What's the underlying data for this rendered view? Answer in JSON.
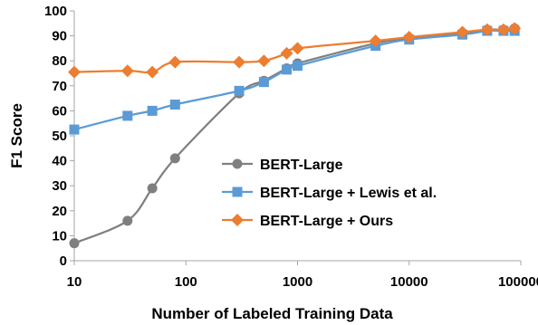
{
  "chart_data": {
    "type": "line",
    "xlabel": "Number of Labeled Training Data",
    "ylabel": "F1 Score",
    "xscale": "log",
    "xlim": [
      10,
      100000
    ],
    "ylim": [
      0,
      100
    ],
    "x_ticks": [
      10,
      100,
      1000,
      10000,
      100000
    ],
    "x_tick_labels": [
      "10",
      "100",
      "1000",
      "10000",
      "100000"
    ],
    "y_ticks": [
      0,
      10,
      20,
      30,
      40,
      50,
      60,
      70,
      80,
      90,
      100
    ],
    "y_tick_labels": [
      "0",
      "10",
      "20",
      "30",
      "40",
      "50",
      "60",
      "70",
      "80",
      "90",
      "100"
    ],
    "grid": false,
    "legend_position": "center-right",
    "series": [
      {
        "name": "BERT-Large",
        "color": "#7f7f7f",
        "marker": "circle",
        "x": [
          10,
          30,
          50,
          80,
          300,
          500,
          800,
          1000,
          5000,
          10000,
          30000,
          50000,
          70000,
          88000
        ],
        "y": [
          7,
          16,
          29,
          41,
          67,
          72,
          77,
          79,
          87,
          89,
          91,
          92.5,
          92.5,
          93
        ]
      },
      {
        "name": "BERT-Large + Lewis et al.",
        "color": "#5b9bd5",
        "marker": "square",
        "x": [
          10,
          30,
          50,
          80,
          300,
          500,
          800,
          1000,
          5000,
          10000,
          30000,
          50000,
          70000,
          88000
        ],
        "y": [
          52.5,
          58,
          60,
          62.5,
          68,
          71.5,
          76.5,
          78,
          86,
          88.5,
          90.5,
          92,
          92,
          92
        ]
      },
      {
        "name": "BERT-Large + Ours",
        "color": "#ed7d31",
        "marker": "diamond",
        "x": [
          10,
          30,
          50,
          80,
          300,
          500,
          800,
          1000,
          5000,
          10000,
          30000,
          50000,
          70000,
          88000
        ],
        "y": [
          75.5,
          76,
          75.5,
          79.5,
          79.5,
          80,
          83,
          85,
          88,
          89.5,
          91.5,
          92.5,
          92.5,
          93
        ]
      }
    ]
  }
}
